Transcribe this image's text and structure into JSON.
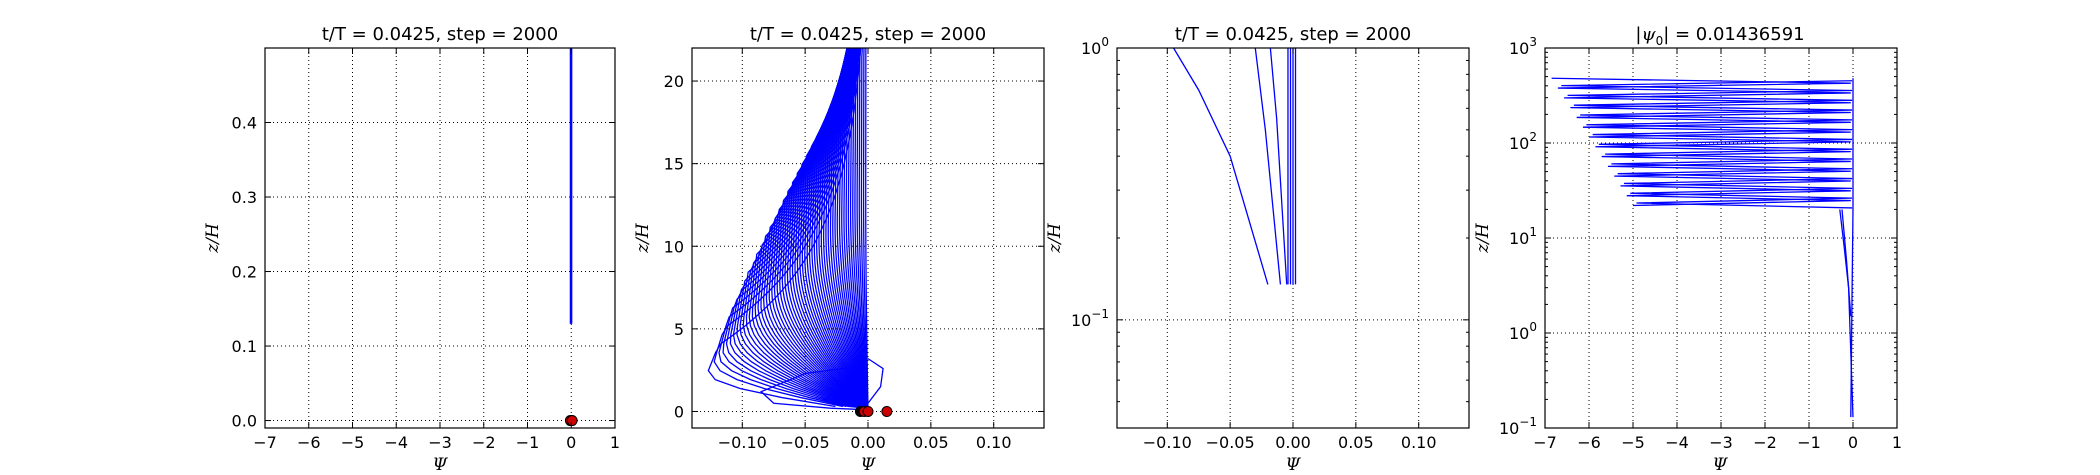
{
  "chart_data": [
    {
      "type": "line",
      "title": "t/T = 0.0425, step = 2000",
      "xlabel": "Ψ",
      "ylabel": "z/H",
      "xlim": [
        -7,
        1
      ],
      "ylim": [
        -0.01,
        0.5
      ],
      "xscale": "linear",
      "yscale": "linear",
      "grid": true,
      "xticks": [
        -7,
        -6,
        -5,
        -4,
        -3,
        -2,
        -1,
        0,
        1
      ],
      "xticklabels": [
        "−7",
        "−6",
        "−5",
        "−4",
        "−3",
        "−2",
        "−1",
        "0",
        "1"
      ],
      "yticks": [
        0.0,
        0.1,
        0.2,
        0.3,
        0.4
      ],
      "yticklabels": [
        "0.0",
        "0.1",
        "0.2",
        "0.3",
        "0.4"
      ],
      "series_color": "#0000ff",
      "marker_colors": [
        "#cc0000",
        "#000000"
      ],
      "series": [
        {
          "x": [
            -0.02,
            -0.02
          ],
          "y": [
            0.5,
            0.13
          ]
        },
        {
          "x": [
            -0.01,
            -0.01
          ],
          "y": [
            0.5,
            0.13
          ]
        },
        {
          "x": [
            0.0,
            0.0
          ],
          "y": [
            0.5,
            0.13
          ]
        },
        {
          "x": [
            0.01,
            0.01
          ],
          "y": [
            0.5,
            0.13
          ]
        }
      ],
      "markers": [
        {
          "x": -0.02,
          "y": 0.0,
          "color": "#cc0000"
        },
        {
          "x": 0.02,
          "y": 0.0,
          "color": "#cc0000"
        }
      ]
    },
    {
      "type": "line",
      "title": "t/T = 0.0425, step = 2000",
      "xlabel": "Ψ",
      "ylabel": "z/H",
      "xlim": [
        -0.14,
        0.14
      ],
      "ylim": [
        -1,
        22
      ],
      "xscale": "linear",
      "yscale": "linear",
      "grid": true,
      "xticks": [
        -0.1,
        -0.05,
        0.0,
        0.05,
        0.1
      ],
      "xticklabels": [
        "−0.10",
        "−0.05",
        "0.00",
        "0.05",
        "0.10"
      ],
      "yticks": [
        0,
        5,
        10,
        15,
        20
      ],
      "yticklabels": [
        "0",
        "5",
        "10",
        "15",
        "20"
      ],
      "series_color": "#0000ff",
      "marker_colors": [
        "#cc0000",
        "#000000"
      ],
      "fan": {
        "count": 60,
        "xmin_first": -0.14,
        "xmin_last": -0.002,
        "peak_first": 4.0,
        "peak_last": 22.0,
        "top": 22.0
      },
      "series": [
        {
          "x": [
            0.0,
            -0.05,
            -0.085,
            -0.075,
            -0.03,
            0.0
          ],
          "y": [
            2.8,
            2.3,
            1.2,
            0.5,
            0.2,
            0.1
          ]
        },
        {
          "x": [
            0.0,
            -0.02,
            -0.035,
            -0.015,
            0.0
          ],
          "y": [
            2.0,
            1.6,
            0.7,
            0.3,
            0.2
          ]
        },
        {
          "x": [
            0.0,
            0.012,
            0.01,
            0.0
          ],
          "y": [
            3.2,
            2.6,
            1.5,
            0.5
          ]
        }
      ],
      "markers": [
        {
          "x": -0.006,
          "y": 0.0,
          "color": "#000000"
        },
        {
          "x": -0.003,
          "y": 0.0,
          "color": "#cc0000"
        },
        {
          "x": 0.0,
          "y": 0.0,
          "color": "#cc0000"
        },
        {
          "x": 0.015,
          "y": 0.0,
          "color": "#cc0000"
        }
      ]
    },
    {
      "type": "line",
      "title": "t/T = 0.0425, step = 2000",
      "xlabel": "Ψ",
      "ylabel": "z/H",
      "xlim": [
        -0.14,
        0.14
      ],
      "ylim": [
        0.04,
        1.0
      ],
      "xscale": "linear",
      "yscale": "log",
      "grid": true,
      "xticks": [
        -0.1,
        -0.05,
        0.0,
        0.05,
        0.1
      ],
      "xticklabels": [
        "−0.10",
        "−0.05",
        "0.00",
        "0.05",
        "0.10"
      ],
      "yticks": [
        0.1,
        1.0
      ],
      "yticklabels": [
        {
          "base": "10",
          "exp": "−1"
        },
        {
          "base": "10",
          "exp": "0"
        }
      ],
      "series_color": "#0000ff",
      "series": [
        {
          "x": [
            -0.02,
            -0.05,
            -0.075,
            -0.095
          ],
          "y": [
            0.135,
            0.4,
            0.7,
            1.0
          ]
        },
        {
          "x": [
            -0.01,
            -0.022,
            -0.03
          ],
          "y": [
            0.135,
            0.5,
            1.0
          ]
        },
        {
          "x": [
            -0.005,
            -0.013,
            -0.018
          ],
          "y": [
            0.135,
            0.55,
            1.0
          ]
        },
        {
          "x": [
            -0.004,
            -0.004
          ],
          "y": [
            0.135,
            1.0
          ]
        },
        {
          "x": [
            -0.002,
            -0.002
          ],
          "y": [
            0.135,
            1.0
          ]
        },
        {
          "x": [
            0.0,
            0.0
          ],
          "y": [
            0.135,
            1.0
          ]
        },
        {
          "x": [
            0.002,
            0.002
          ],
          "y": [
            0.135,
            1.0
          ]
        }
      ]
    },
    {
      "type": "line",
      "title": "|ψ0| = 0.01436591",
      "title_parts": {
        "pre": "|",
        "sym": "ψ",
        "sub": "0",
        "post": "| = 0.01436591"
      },
      "xlabel": "Ψ",
      "ylabel": "z/H",
      "xlim": [
        -7,
        1
      ],
      "ylim": [
        0.1,
        1000
      ],
      "xscale": "linear",
      "yscale": "log",
      "grid": true,
      "xticks": [
        -7,
        -6,
        -5,
        -4,
        -3,
        -2,
        -1,
        0,
        1
      ],
      "xticklabels": [
        "−7",
        "−6",
        "−5",
        "−4",
        "−3",
        "−2",
        "−1",
        "0",
        "1"
      ],
      "yticks": [
        0.1,
        1,
        10,
        100,
        1000
      ],
      "yticklabels": [
        {
          "base": "10",
          "exp": "−1"
        },
        {
          "base": "10",
          "exp": "0"
        },
        {
          "base": "10",
          "exp": "1"
        },
        {
          "base": "10",
          "exp": "2"
        },
        {
          "base": "10",
          "exp": "3"
        }
      ],
      "series_color": "#0000ff",
      "zigzag": {
        "z_top": 480,
        "z_bottom": 22,
        "psi_left_top": -6.85,
        "psi_left_bottom": -5.0,
        "steps": 26
      },
      "series": [
        {
          "x": [
            -0.05,
            -0.02,
            0.0,
            0.0
          ],
          "y": [
            0.13,
            3,
            20,
            480
          ]
        },
        {
          "x": [
            -0.3,
            -0.2,
            -0.1,
            0.0
          ],
          "y": [
            20,
            8,
            3,
            0.13
          ]
        },
        {
          "x": [
            -0.25,
            -0.15,
            -0.05
          ],
          "y": [
            20,
            6,
            1.5
          ]
        }
      ]
    }
  ]
}
